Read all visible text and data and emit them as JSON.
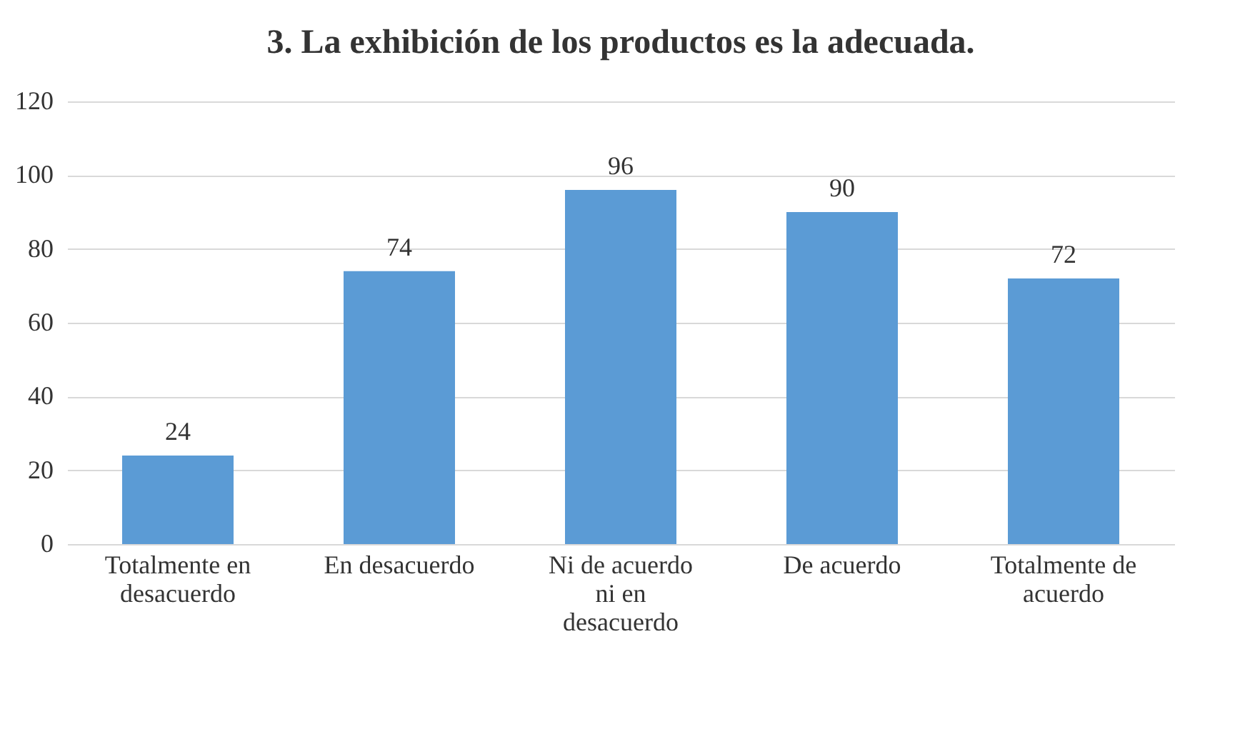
{
  "chart_data": {
    "type": "bar",
    "title": "3. La exhibición de los productos es la adecuada.",
    "categories": [
      "Totalmente en desacuerdo",
      "En desacuerdo",
      "Ni de acuerdo ni en desacuerdo",
      "De acuerdo",
      "Totalmente de acuerdo"
    ],
    "values": [
      24,
      74,
      96,
      90,
      72
    ],
    "color": "#5b9bd5",
    "ylim": [
      0,
      120
    ],
    "yticks": [
      0,
      20,
      40,
      60,
      80,
      100,
      120
    ],
    "grid": "y",
    "data_labels": true
  }
}
